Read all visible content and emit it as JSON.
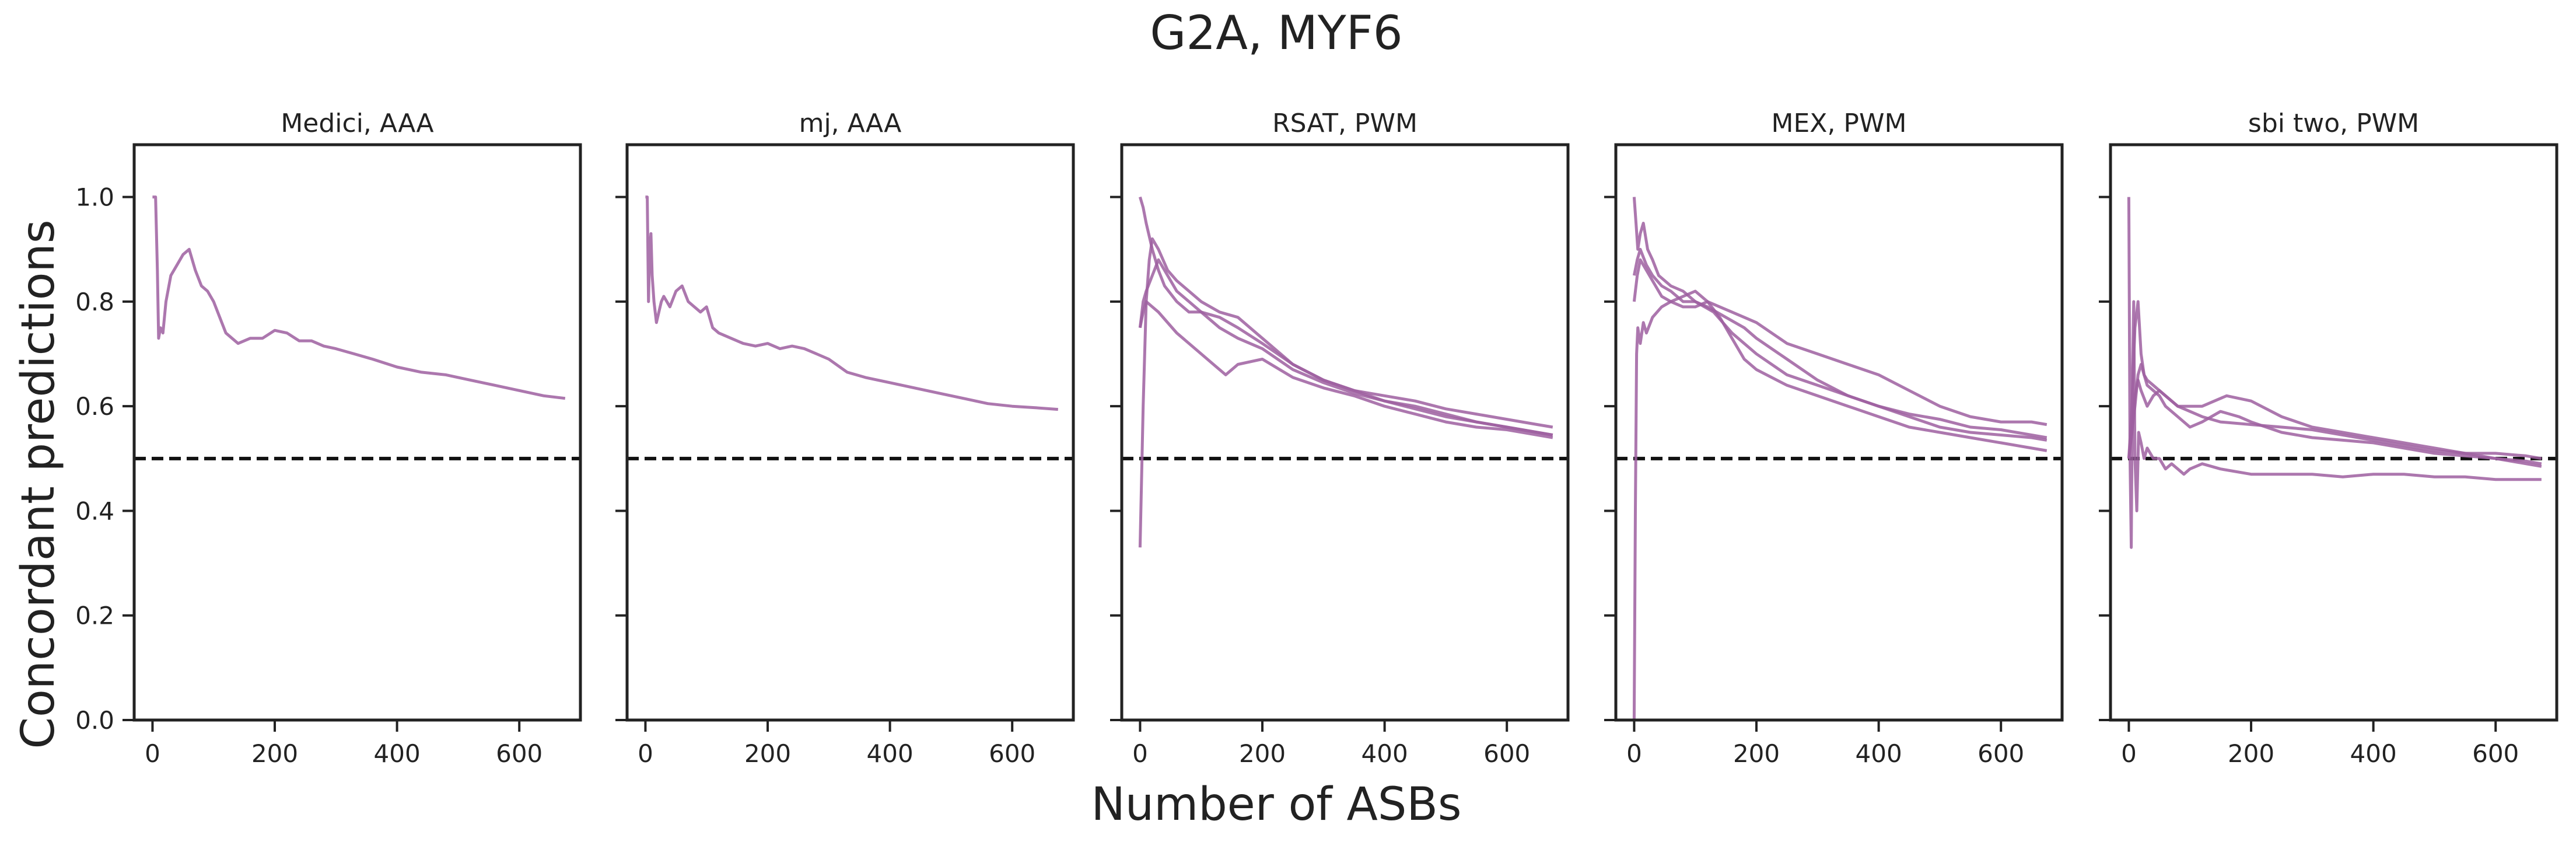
{
  "figure": {
    "title": "G2A, MYF6",
    "xlabel": "Number of ASBs",
    "ylabel": "Concordant predictions"
  },
  "style": {
    "line_color": "#9e5fa0",
    "baseline_color": "#111111",
    "axis_color": "#222222"
  },
  "chart_data": [
    {
      "type": "line",
      "title": "Medici, AAA",
      "xlim": [
        -30,
        700
      ],
      "ylim": [
        0,
        1.1
      ],
      "xticks": [
        0,
        200,
        400,
        600
      ],
      "yticks": [
        0.0,
        0.2,
        0.4,
        0.6,
        0.8,
        1.0
      ],
      "ytick_labels": [
        "0.0",
        "0.2",
        "0.4",
        "0.6",
        "0.8",
        "1.0"
      ],
      "baseline": 0.5,
      "series": [
        {
          "x": [
            0,
            5,
            8,
            10,
            13,
            17,
            22,
            30,
            40,
            50,
            60,
            70,
            80,
            90,
            100,
            110,
            120,
            130,
            140,
            160,
            180,
            200,
            220,
            240,
            260,
            280,
            300,
            330,
            360,
            400,
            440,
            480,
            520,
            560,
            600,
            640,
            675
          ],
          "y": [
            1.0,
            1.0,
            0.86,
            0.73,
            0.75,
            0.74,
            0.8,
            0.85,
            0.87,
            0.89,
            0.9,
            0.86,
            0.83,
            0.82,
            0.8,
            0.77,
            0.74,
            0.73,
            0.72,
            0.73,
            0.73,
            0.745,
            0.74,
            0.725,
            0.725,
            0.715,
            0.71,
            0.7,
            0.69,
            0.675,
            0.665,
            0.66,
            0.65,
            0.64,
            0.63,
            0.62,
            0.615
          ]
        }
      ]
    },
    {
      "type": "line",
      "title": "mj, AAA",
      "xlim": [
        -30,
        700
      ],
      "ylim": [
        0,
        1.1
      ],
      "xticks": [
        0,
        200,
        400,
        600
      ],
      "yticks": [
        0.0,
        0.2,
        0.4,
        0.6,
        0.8,
        1.0
      ],
      "ytick_labels": [
        "",
        "",
        "",
        "",
        "",
        ""
      ],
      "baseline": 0.5,
      "series": [
        {
          "x": [
            0,
            3,
            5,
            7,
            9,
            11,
            14,
            18,
            22,
            26,
            30,
            40,
            50,
            60,
            70,
            80,
            90,
            100,
            110,
            120,
            140,
            160,
            180,
            200,
            220,
            240,
            260,
            280,
            300,
            330,
            360,
            400,
            440,
            480,
            520,
            560,
            600,
            640,
            675
          ],
          "y": [
            1.0,
            1.0,
            0.8,
            0.9,
            0.93,
            0.85,
            0.8,
            0.76,
            0.78,
            0.8,
            0.81,
            0.79,
            0.82,
            0.83,
            0.8,
            0.79,
            0.78,
            0.79,
            0.75,
            0.74,
            0.73,
            0.72,
            0.715,
            0.72,
            0.71,
            0.715,
            0.71,
            0.7,
            0.69,
            0.665,
            0.655,
            0.645,
            0.635,
            0.625,
            0.615,
            0.605,
            0.6,
            0.597,
            0.594
          ]
        }
      ]
    },
    {
      "type": "line",
      "title": "RSAT, PWM",
      "xlim": [
        -30,
        700
      ],
      "ylim": [
        0,
        1.1
      ],
      "xticks": [
        0,
        200,
        400,
        600
      ],
      "yticks": [
        0.0,
        0.2,
        0.4,
        0.6,
        0.8,
        1.0
      ],
      "ytick_labels": [
        "",
        "",
        "",
        "",
        "",
        ""
      ],
      "baseline": 0.5,
      "series": [
        {
          "x": [
            0,
            5,
            10,
            20,
            30,
            40,
            60,
            80,
            100,
            130,
            160,
            200,
            250,
            300,
            350,
            400,
            450,
            500,
            550,
            600,
            650,
            675
          ],
          "y": [
            1.0,
            0.98,
            0.95,
            0.9,
            0.86,
            0.83,
            0.8,
            0.78,
            0.78,
            0.77,
            0.75,
            0.72,
            0.68,
            0.65,
            0.63,
            0.61,
            0.6,
            0.585,
            0.57,
            0.56,
            0.55,
            0.545
          ]
        },
        {
          "x": [
            0,
            5,
            10,
            15,
            20,
            30,
            45,
            60,
            80,
            100,
            130,
            160,
            200,
            250,
            300,
            350,
            400,
            450,
            500,
            550,
            600,
            650,
            675
          ],
          "y": [
            0.33,
            0.6,
            0.8,
            0.88,
            0.92,
            0.9,
            0.86,
            0.84,
            0.82,
            0.8,
            0.78,
            0.77,
            0.73,
            0.68,
            0.65,
            0.63,
            0.62,
            0.61,
            0.595,
            0.585,
            0.575,
            0.565,
            0.56
          ]
        },
        {
          "x": [
            0,
            5,
            10,
            20,
            30,
            45,
            60,
            80,
            100,
            130,
            160,
            200,
            250,
            300,
            350,
            400,
            450,
            500,
            550,
            600,
            650,
            675
          ],
          "y": [
            0.75,
            0.8,
            0.82,
            0.85,
            0.88,
            0.85,
            0.82,
            0.8,
            0.78,
            0.75,
            0.73,
            0.71,
            0.67,
            0.645,
            0.625,
            0.61,
            0.595,
            0.58,
            0.57,
            0.56,
            0.55,
            0.545
          ]
        },
        {
          "x": [
            0,
            5,
            10,
            20,
            30,
            45,
            60,
            80,
            100,
            120,
            140,
            160,
            200,
            250,
            300,
            350,
            400,
            450,
            500,
            550,
            600,
            650,
            675
          ],
          "y": [
            0.75,
            0.78,
            0.8,
            0.79,
            0.78,
            0.76,
            0.74,
            0.72,
            0.7,
            0.68,
            0.66,
            0.68,
            0.69,
            0.655,
            0.635,
            0.62,
            0.6,
            0.585,
            0.57,
            0.56,
            0.555,
            0.545,
            0.54
          ]
        }
      ]
    },
    {
      "type": "line",
      "title": "MEX, PWM",
      "xlim": [
        -30,
        700
      ],
      "ylim": [
        0,
        1.1
      ],
      "xticks": [
        0,
        200,
        400,
        600
      ],
      "yticks": [
        0.0,
        0.2,
        0.4,
        0.6,
        0.8,
        1.0
      ],
      "ytick_labels": [
        "",
        "",
        "",
        "",
        "",
        ""
      ],
      "baseline": 0.5,
      "series": [
        {
          "x": [
            0,
            3,
            6,
            10,
            15,
            22,
            30,
            40,
            60,
            80,
            100,
            120,
            150,
            180,
            200,
            250,
            300,
            350,
            400,
            450,
            500,
            550,
            600,
            650,
            675
          ],
          "y": [
            1.0,
            0.95,
            0.9,
            0.93,
            0.95,
            0.9,
            0.88,
            0.85,
            0.83,
            0.82,
            0.8,
            0.79,
            0.77,
            0.75,
            0.73,
            0.69,
            0.65,
            0.62,
            0.6,
            0.58,
            0.56,
            0.55,
            0.545,
            0.54,
            0.535
          ]
        },
        {
          "x": [
            0,
            2,
            4,
            6,
            10,
            15,
            20,
            30,
            45,
            60,
            80,
            100,
            120,
            140,
            160,
            180,
            200,
            250,
            300,
            350,
            400,
            450,
            500,
            550,
            600,
            650,
            675
          ],
          "y": [
            0.0,
            0.4,
            0.7,
            0.75,
            0.72,
            0.76,
            0.74,
            0.77,
            0.79,
            0.8,
            0.81,
            0.82,
            0.8,
            0.77,
            0.73,
            0.69,
            0.67,
            0.64,
            0.62,
            0.6,
            0.58,
            0.56,
            0.55,
            0.54,
            0.53,
            0.52,
            0.515
          ]
        },
        {
          "x": [
            0,
            5,
            10,
            20,
            30,
            45,
            60,
            80,
            100,
            130,
            160,
            200,
            250,
            300,
            350,
            400,
            450,
            500,
            550,
            600,
            650,
            675
          ],
          "y": [
            0.85,
            0.88,
            0.9,
            0.87,
            0.85,
            0.83,
            0.82,
            0.8,
            0.8,
            0.78,
            0.74,
            0.7,
            0.66,
            0.64,
            0.62,
            0.6,
            0.585,
            0.575,
            0.56,
            0.555,
            0.545,
            0.54
          ]
        },
        {
          "x": [
            0,
            5,
            10,
            20,
            30,
            45,
            60,
            80,
            100,
            120,
            140,
            160,
            180,
            200,
            250,
            300,
            350,
            400,
            450,
            500,
            550,
            600,
            650,
            675
          ],
          "y": [
            0.8,
            0.85,
            0.88,
            0.86,
            0.84,
            0.81,
            0.8,
            0.79,
            0.79,
            0.8,
            0.79,
            0.78,
            0.77,
            0.76,
            0.72,
            0.7,
            0.68,
            0.66,
            0.63,
            0.6,
            0.58,
            0.57,
            0.57,
            0.565
          ]
        }
      ]
    },
    {
      "type": "line",
      "title": "sbi two, PWM",
      "xlim": [
        -30,
        700
      ],
      "ylim": [
        0,
        1.1
      ],
      "xticks": [
        0,
        200,
        400,
        600
      ],
      "yticks": [
        0.0,
        0.2,
        0.4,
        0.6,
        0.8,
        1.0
      ],
      "ytick_labels": [
        "",
        "",
        "",
        "",
        "",
        ""
      ],
      "baseline": 0.5,
      "series": [
        {
          "x": [
            0,
            2,
            4,
            6,
            8,
            10,
            13,
            16,
            20,
            25,
            30,
            40,
            50,
            60,
            70,
            80,
            90,
            100,
            120,
            150,
            200,
            250,
            300,
            350,
            400,
            450,
            500,
            550,
            600,
            650,
            675
          ],
          "y": [
            1.0,
            0.5,
            0.33,
            0.67,
            0.8,
            0.5,
            0.4,
            0.55,
            0.53,
            0.5,
            0.52,
            0.5,
            0.5,
            0.48,
            0.49,
            0.48,
            0.47,
            0.48,
            0.49,
            0.48,
            0.47,
            0.47,
            0.47,
            0.465,
            0.47,
            0.47,
            0.465,
            0.465,
            0.46,
            0.46,
            0.46
          ]
        },
        {
          "x": [
            0,
            5,
            10,
            15,
            20,
            25,
            30,
            40,
            50,
            60,
            80,
            100,
            120,
            150,
            200,
            250,
            300,
            350,
            400,
            450,
            500,
            550,
            600,
            650,
            675
          ],
          "y": [
            0.5,
            0.6,
            0.75,
            0.8,
            0.7,
            0.66,
            0.65,
            0.64,
            0.63,
            0.62,
            0.6,
            0.59,
            0.58,
            0.57,
            0.565,
            0.56,
            0.555,
            0.545,
            0.535,
            0.525,
            0.515,
            0.51,
            0.5,
            0.495,
            0.49
          ]
        },
        {
          "x": [
            0,
            5,
            10,
            15,
            20,
            30,
            40,
            50,
            60,
            80,
            100,
            120,
            140,
            160,
            200,
            250,
            300,
            350,
            400,
            450,
            500,
            550,
            600,
            650,
            675
          ],
          "y": [
            0.5,
            0.55,
            0.62,
            0.65,
            0.63,
            0.6,
            0.62,
            0.63,
            0.62,
            0.6,
            0.6,
            0.6,
            0.61,
            0.62,
            0.61,
            0.58,
            0.56,
            0.55,
            0.54,
            0.53,
            0.52,
            0.51,
            0.51,
            0.505,
            0.5
          ]
        },
        {
          "x": [
            0,
            5,
            10,
            15,
            20,
            25,
            30,
            40,
            50,
            60,
            80,
            100,
            120,
            150,
            180,
            200,
            250,
            300,
            350,
            400,
            450,
            500,
            550,
            600,
            650,
            675
          ],
          "y": [
            0.5,
            0.55,
            0.6,
            0.66,
            0.68,
            0.66,
            0.64,
            0.63,
            0.62,
            0.6,
            0.58,
            0.56,
            0.57,
            0.59,
            0.58,
            0.57,
            0.55,
            0.54,
            0.535,
            0.53,
            0.52,
            0.51,
            0.505,
            0.5,
            0.49,
            0.485
          ]
        }
      ]
    }
  ]
}
